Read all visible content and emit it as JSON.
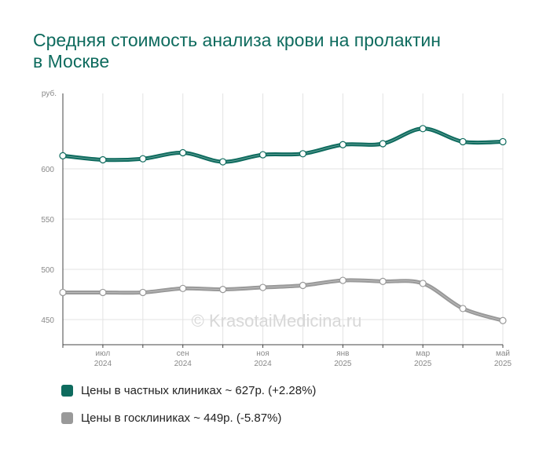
{
  "page": {
    "title": "Средняя стоимость анализа крови на пролактин в Москве",
    "watermark": "© KrasotaiMedicina.ru"
  },
  "chart_data": {
    "type": "line",
    "title": "Средняя стоимость анализа крови на пролактин в Москве",
    "ylabel": "руб.",
    "ylim": [
      425,
      675
    ],
    "yticks": [
      450,
      500,
      550,
      600
    ],
    "grid": true,
    "legend_position": "bottom",
    "x": [
      "2024-06",
      "2024-07",
      "2024-08",
      "2024-09",
      "2024-10",
      "2024-11",
      "2024-12",
      "2025-01",
      "2025-02",
      "2025-03",
      "2025-04",
      "2025-05"
    ],
    "xtick_labels": [
      {
        "month": "июл",
        "year": "2024",
        "index": 1
      },
      {
        "month": "сен",
        "year": "2024",
        "index": 3
      },
      {
        "month": "ноя",
        "year": "2024",
        "index": 5
      },
      {
        "month": "янв",
        "year": "2025",
        "index": 7
      },
      {
        "month": "мар",
        "year": "2025",
        "index": 9
      },
      {
        "month": "май",
        "year": "2025",
        "index": 11
      }
    ],
    "series": [
      {
        "name": "Цены в частных клиниках ~ 627р. (+2.28%)",
        "color": "#0e6b5e",
        "values": [
          613,
          609,
          610,
          616,
          607,
          614,
          615,
          624,
          625,
          640,
          627,
          627
        ]
      },
      {
        "name": "Цены в госклиниках ~ 449р. (-5.87%)",
        "color": "#999999",
        "values": [
          477,
          477,
          477,
          481,
          480,
          482,
          484,
          489,
          488,
          486,
          461,
          449
        ]
      }
    ]
  }
}
